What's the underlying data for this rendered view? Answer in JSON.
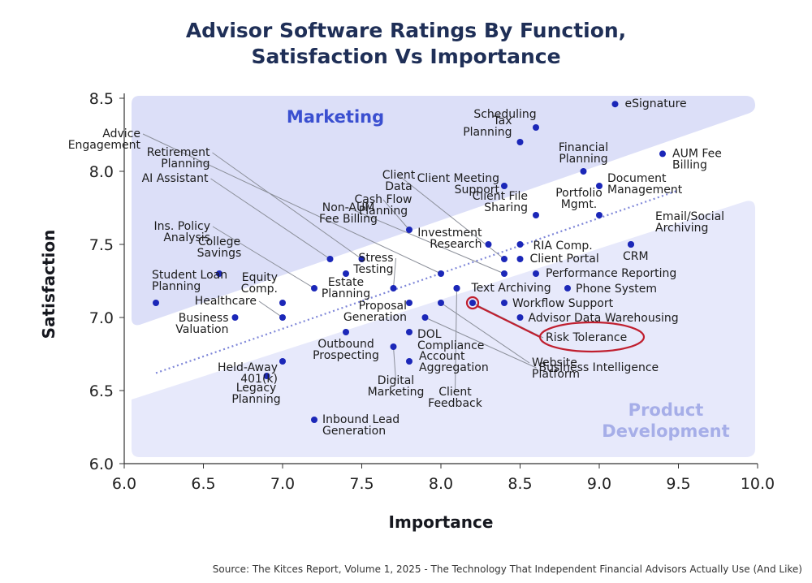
{
  "chart_data": {
    "type": "scatter",
    "title": [
      "Advisor Software Ratings By Function,",
      "Satisfaction Vs Importance"
    ],
    "xlabel": "Importance",
    "ylabel": "Satisfaction",
    "xlim": [
      6.0,
      10.0
    ],
    "ylim": [
      6.0,
      8.5
    ],
    "xticks": [
      "6.0",
      "6.5",
      "7.0",
      "7.5",
      "8.0",
      "8.5",
      "9.0",
      "9.5",
      "10.0"
    ],
    "yticks": [
      "6.0",
      "6.5",
      "7.0",
      "7.5",
      "8.0",
      "8.5"
    ],
    "zones": {
      "upper": "Marketing",
      "lower": [
        "Product",
        "Development"
      ]
    },
    "trend_line": {
      "x": [
        6.2,
        9.5
      ],
      "y": [
        6.62,
        7.87
      ],
      "style": "dotted"
    },
    "points": [
      {
        "name": [
          "eSignature"
        ],
        "x": 9.1,
        "y": 8.46
      },
      {
        "name": [
          "Scheduling"
        ],
        "x": 8.6,
        "y": 8.3
      },
      {
        "name": [
          "Tax",
          "Planning"
        ],
        "x": 8.5,
        "y": 8.2
      },
      {
        "name": [
          "Financial",
          "Planning"
        ],
        "x": 8.9,
        "y": 8.0
      },
      {
        "name": [
          "AUM Fee",
          "Billing"
        ],
        "x": 9.4,
        "y": 8.12
      },
      {
        "name": [
          "Document",
          "Management"
        ],
        "x": 9.0,
        "y": 7.9
      },
      {
        "name": [
          "Client Meeting",
          "Support"
        ],
        "x": 8.4,
        "y": 7.9
      },
      {
        "name": [
          "Portfolio",
          "Mgmt."
        ],
        "x": 9.0,
        "y": 7.7
      },
      {
        "name": [
          "Client File",
          "Sharing"
        ],
        "x": 8.6,
        "y": 7.7
      },
      {
        "name": [
          "Email/Social",
          "Archiving"
        ],
        "x": 9.2,
        "y": 7.5
      },
      {
        "name": [
          "CRM"
        ],
        "x": 9.2,
        "y": 7.5
      },
      {
        "name": [
          "Investment",
          "Research"
        ],
        "x": 8.3,
        "y": 7.5
      },
      {
        "name": [
          "RIA Comp."
        ],
        "x": 8.5,
        "y": 7.5
      },
      {
        "name": [
          "Client Portal"
        ],
        "x": 8.5,
        "y": 7.4
      },
      {
        "name": [
          "Performance Reporting"
        ],
        "x": 8.6,
        "y": 7.3
      },
      {
        "name": [
          "Phone System"
        ],
        "x": 8.8,
        "y": 7.2
      },
      {
        "name": [
          "Text Archiving"
        ],
        "x": 8.1,
        "y": 7.2
      },
      {
        "name": [
          "Workflow Support"
        ],
        "x": 8.4,
        "y": 7.1
      },
      {
        "name": [
          "Advisor Data Warehousing"
        ],
        "x": 8.5,
        "y": 7.0
      },
      {
        "name": [
          "Risk Tolerance"
        ],
        "x": 8.2,
        "y": 7.1,
        "highlighted": true
      },
      {
        "name": [
          "Business Intelligence"
        ],
        "x": 7.9,
        "y": 7.0
      },
      {
        "name": [
          "Website",
          "Platform"
        ],
        "x": 8.0,
        "y": 7.1
      },
      {
        "name": [
          "Client",
          "Feedback"
        ],
        "x": 8.1,
        "y": 7.2
      },
      {
        "name": [
          "Cash Flow",
          "Planning"
        ],
        "x": 7.8,
        "y": 7.6
      },
      {
        "name": [
          "Client",
          "Data"
        ],
        "x": 8.4,
        "y": 7.4
      },
      {
        "name": [
          "Non-AUM",
          "Fee Billing"
        ],
        "x": 8.4,
        "y": 7.3
      },
      {
        "name": [
          "Stress",
          "Testing"
        ],
        "x": 7.7,
        "y": 7.2
      },
      {
        "name": [
          "Proposal",
          "Generation"
        ],
        "x": 7.8,
        "y": 7.1
      },
      {
        "name": [
          "DOL",
          "Compliance"
        ],
        "x": 7.8,
        "y": 6.9
      },
      {
        "name": [
          "Account",
          "Aggregation"
        ],
        "x": 7.8,
        "y": 6.7
      },
      {
        "name": [
          "Digital",
          "Marketing"
        ],
        "x": 7.7,
        "y": 6.8
      },
      {
        "name": [
          "Outbound",
          "Prospecting"
        ],
        "x": 7.4,
        "y": 6.9
      },
      {
        "name": [
          "Inbound Lead",
          "Generation"
        ],
        "x": 7.2,
        "y": 6.3
      },
      {
        "name": [
          "Advice",
          "Engagement"
        ],
        "x": 8.0,
        "y": 7.3
      },
      {
        "name": [
          "Retirement",
          "Planning"
        ],
        "x": 7.5,
        "y": 7.4
      },
      {
        "name": [
          "AI Assistant"
        ],
        "x": 7.3,
        "y": 7.4
      },
      {
        "name": [
          "Ins. Policy",
          "Analysis"
        ],
        "x": 7.2,
        "y": 7.2
      },
      {
        "name": [
          "College",
          "Savings"
        ],
        "x": 6.6,
        "y": 7.3
      },
      {
        "name": [
          "Estate",
          "Planning"
        ],
        "x": 7.4,
        "y": 7.3
      },
      {
        "name": [
          "Equity",
          "Comp."
        ],
        "x": 7.0,
        "y": 7.1
      },
      {
        "name": [
          "Student Loan",
          "Planning"
        ],
        "x": 6.2,
        "y": 7.1
      },
      {
        "name": [
          "Healthcare"
        ],
        "x": 7.0,
        "y": 7.0
      },
      {
        "name": [
          "Business",
          "Valuation"
        ],
        "x": 6.7,
        "y": 7.0
      },
      {
        "name": [
          "Held-Away",
          "401(k)"
        ],
        "x": 7.0,
        "y": 6.7
      },
      {
        "name": [
          "Legacy",
          "Planning"
        ],
        "x": 6.9,
        "y": 6.6
      }
    ],
    "highlight_color": "#c01f2f",
    "point_color": "#1b27b8",
    "source": "Source: The Kitces Report, Volume 1, 2025 - The Technology That Independent Financial Advisors Actually Use (And Like)"
  }
}
